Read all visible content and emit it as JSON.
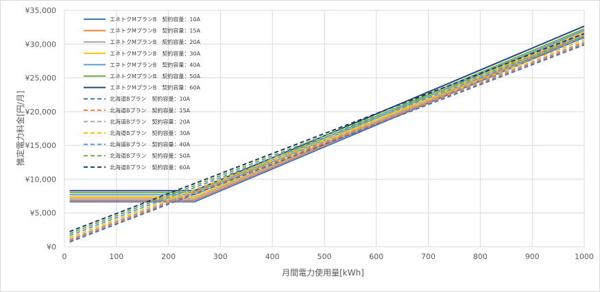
{
  "chart_data": {
    "type": "line",
    "title": "",
    "xlabel": "月間電力使用量[kWh]",
    "ylabel": "推定電力料金[円/月]",
    "xlim": [
      0,
      1000
    ],
    "ylim": [
      0,
      35000
    ],
    "x_ticks": [
      "0",
      "100",
      "200",
      "300",
      "400",
      "500",
      "600",
      "700",
      "800",
      "900",
      "1000"
    ],
    "y_ticks": [
      "¥0",
      "¥5,000",
      "¥10,000",
      "¥15,000",
      "¥20,000",
      "¥25,000",
      "¥30,000",
      "¥35,000"
    ],
    "grid": "vertical and horizontal",
    "legend_position": "top-left",
    "series": [
      {
        "name": "エネトクMプランB　契約容量：10A",
        "color": "#4472C4",
        "dash": "solid",
        "x": [
          10,
          240,
          250,
          1000
        ],
        "y": [
          6650,
          6650,
          6650,
          31000
        ]
      },
      {
        "name": "エネトクMプランB　契約容量：15A",
        "color": "#ED7D31",
        "dash": "solid",
        "x": [
          10,
          240,
          250,
          1000
        ],
        "y": [
          6900,
          6900,
          6900,
          31250
        ]
      },
      {
        "name": "エネトクMプランB　契約容量：20A",
        "color": "#A5A5A5",
        "dash": "solid",
        "x": [
          10,
          240,
          250,
          1000
        ],
        "y": [
          7150,
          7150,
          7150,
          31500
        ]
      },
      {
        "name": "エネトクMプランB　契約容量：30A",
        "color": "#FFC000",
        "dash": "solid",
        "x": [
          10,
          240,
          250,
          1000
        ],
        "y": [
          7400,
          7400,
          7400,
          31750
        ]
      },
      {
        "name": "エネトクMプランB　契約容量：40A",
        "color": "#5B9BD5",
        "dash": "solid",
        "x": [
          10,
          240,
          250,
          1000
        ],
        "y": [
          7700,
          7700,
          7700,
          32000
        ]
      },
      {
        "name": "エネトクMプランB　契約容量：50A",
        "color": "#70AD47",
        "dash": "solid",
        "x": [
          10,
          240,
          250,
          1000
        ],
        "y": [
          8000,
          8000,
          8000,
          32250
        ]
      },
      {
        "name": "エネトクMプランB　契約容量：60A",
        "color": "#264478",
        "dash": "solid",
        "x": [
          10,
          240,
          250,
          1000
        ],
        "y": [
          8300,
          8300,
          8300,
          32650
        ]
      },
      {
        "name": "北海道Bプラン　契約容量：10A",
        "color": "#4472C4",
        "dash": "dashed",
        "x": [
          10,
          1000
        ],
        "y": [
          700,
          29900
        ]
      },
      {
        "name": "北海道Bプラン　契約容量：15A",
        "color": "#ED7D31",
        "dash": "dashed",
        "x": [
          10,
          1000
        ],
        "y": [
          900,
          30100
        ]
      },
      {
        "name": "北海道Bプラン　契約容量：20A",
        "color": "#A5A5A5",
        "dash": "dashed",
        "x": [
          10,
          1000
        ],
        "y": [
          1100,
          30300
        ]
      },
      {
        "name": "北海道Bプラン　契約容量：30A",
        "color": "#FFC000",
        "dash": "dashed",
        "x": [
          10,
          1000
        ],
        "y": [
          1350,
          30600
        ]
      },
      {
        "name": "北海道Bプラン　契約容量：40A",
        "color": "#5B9BD5",
        "dash": "dashed",
        "x": [
          10,
          1000
        ],
        "y": [
          1650,
          30900
        ]
      },
      {
        "name": "北海道Bプラン　契約容量：50A",
        "color": "#70AD47",
        "dash": "dashed",
        "x": [
          10,
          1000
        ],
        "y": [
          1950,
          31200
        ]
      },
      {
        "name": "北海道Bプラン　契約容量：60A",
        "color": "#1F3864",
        "dash": "dashed",
        "x": [
          10,
          1000
        ],
        "y": [
          2250,
          31550
        ]
      }
    ]
  }
}
